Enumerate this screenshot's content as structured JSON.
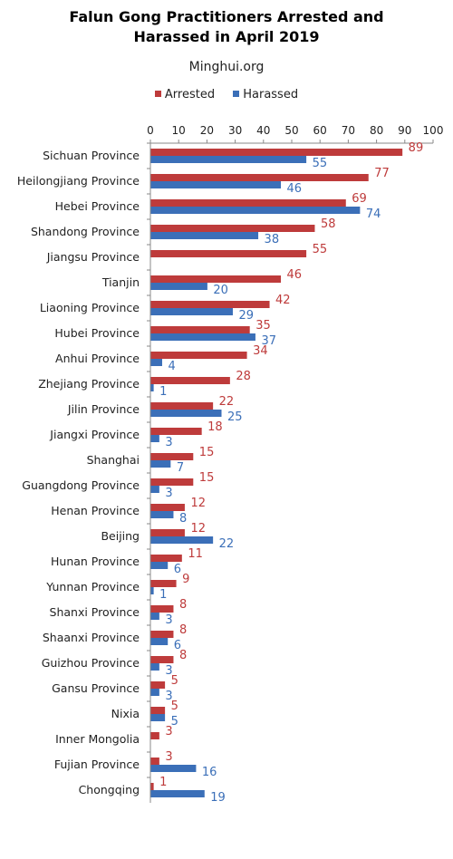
{
  "title_line1": "Falun Gong Practitioners Arrested and",
  "title_line2": "Harassed in April 2019",
  "subtitle": "Minghui.org",
  "chart_data": {
    "type": "bar",
    "orientation": "horizontal",
    "categories": [
      "Sichuan Province",
      "Heilongjiang Province",
      "Hebei Province",
      "Shandong Province",
      "Jiangsu Province",
      "Tianjin",
      "Liaoning Province",
      "Hubei Province",
      "Anhui Province",
      "Zhejiang Province",
      "Jilin Province",
      "Jiangxi Province",
      "Shanghai",
      "Guangdong Province",
      "Henan Province",
      "Beijing",
      "Hunan Province",
      "Yunnan Province",
      "Shanxi Province",
      "Shaanxi Province",
      "Guizhou Province",
      "Gansu Province",
      "Nixia",
      "Inner Mongolia",
      "Fujian Province",
      "Chongqing"
    ],
    "series": [
      {
        "name": "Arrested",
        "color": "#be3b3b",
        "values": [
          89,
          77,
          69,
          58,
          55,
          46,
          42,
          35,
          34,
          28,
          22,
          18,
          15,
          15,
          12,
          12,
          11,
          9,
          8,
          8,
          8,
          5,
          5,
          3,
          3,
          1
        ]
      },
      {
        "name": "Harassed",
        "color": "#3b6fb8",
        "values": [
          55,
          46,
          74,
          38,
          null,
          20,
          29,
          37,
          4,
          1,
          25,
          3,
          7,
          3,
          8,
          22,
          6,
          1,
          3,
          6,
          3,
          3,
          5,
          null,
          16,
          19
        ]
      }
    ],
    "xlim": [
      0,
      100
    ],
    "xticks": [
      "0",
      "10",
      "20",
      "30",
      "40",
      "50",
      "60",
      "70",
      "80",
      "90",
      "100"
    ],
    "legend_position": "top",
    "grid": false
  }
}
